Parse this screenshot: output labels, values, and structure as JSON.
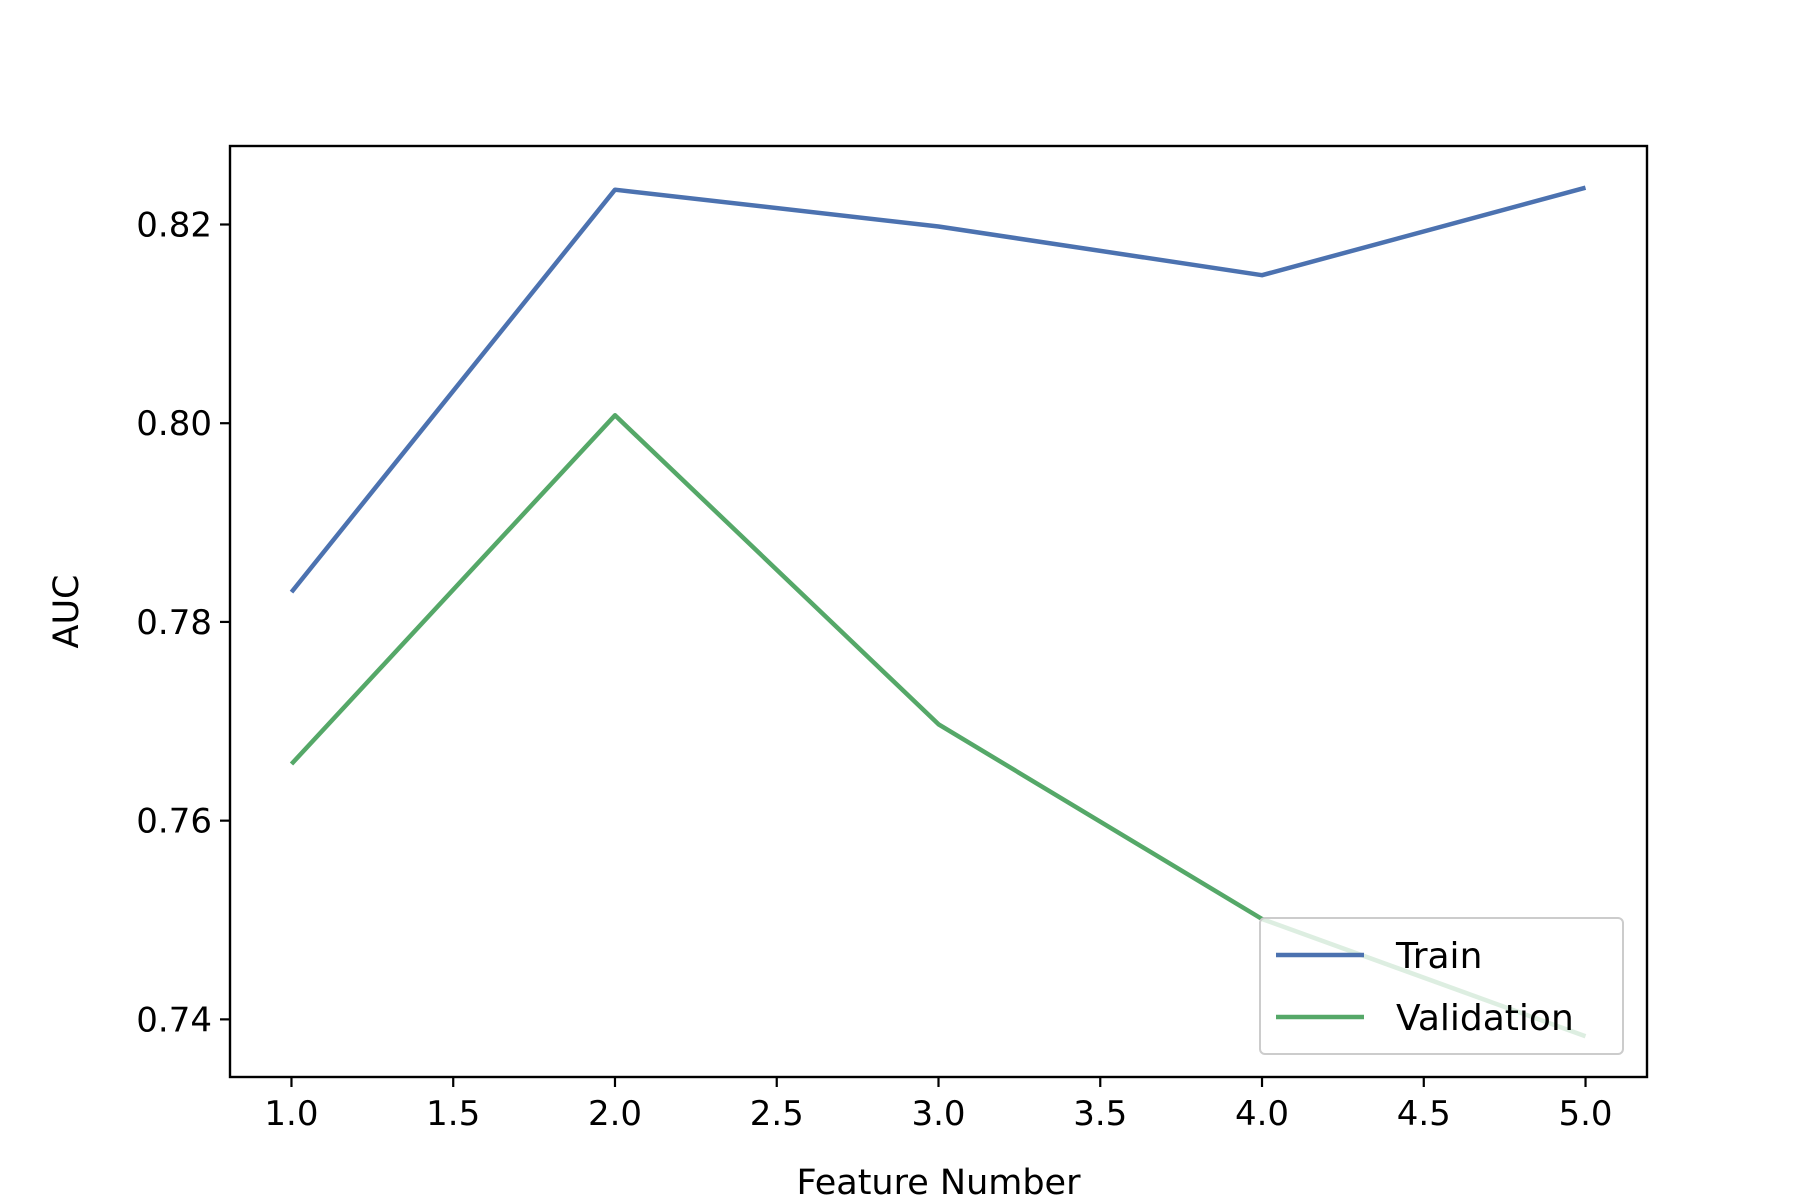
{
  "chart_data": {
    "type": "line",
    "title": "",
    "xlabel": "Feature Number",
    "ylabel": "AUC",
    "x": [
      1,
      2,
      3,
      4,
      5
    ],
    "series": [
      {
        "name": "Train",
        "color": "#4c72b0",
        "values": [
          0.783,
          0.8235,
          0.8198,
          0.8149,
          0.8237
        ]
      },
      {
        "name": "Validation",
        "color": "#55a868",
        "values": [
          0.7657,
          0.8008,
          0.7697,
          0.7501,
          0.7383
        ]
      }
    ],
    "xlim": [
      0.81,
      5.19
    ],
    "ylim": [
      0.7342,
      0.8279
    ],
    "xticks": [
      1.0,
      1.5,
      2.0,
      2.5,
      3.0,
      3.5,
      4.0,
      4.5,
      5.0
    ],
    "xtick_labels": [
      "1.0",
      "1.5",
      "2.0",
      "2.5",
      "3.0",
      "3.5",
      "4.0",
      "4.5",
      "5.0"
    ],
    "yticks": [
      0.74,
      0.76,
      0.78,
      0.8,
      0.82
    ],
    "ytick_labels": [
      "0.74",
      "0.76",
      "0.78",
      "0.80",
      "0.82"
    ],
    "grid": false,
    "legend": {
      "position": "lower right"
    }
  }
}
